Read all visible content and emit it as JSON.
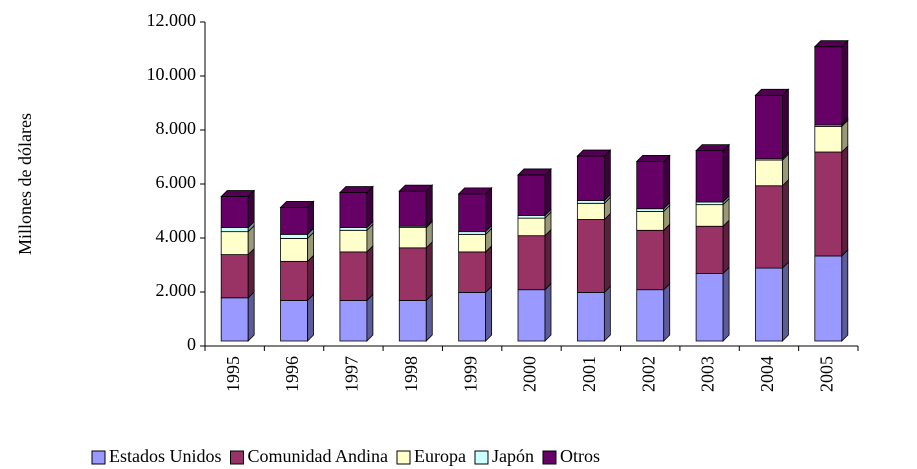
{
  "chart_data": {
    "type": "bar",
    "stacked": true,
    "y_label": "Millones de dólares",
    "categories": [
      "1995",
      "1996",
      "1997",
      "1998",
      "1999",
      "2000",
      "2001",
      "2002",
      "2003",
      "2004",
      "2005"
    ],
    "series": [
      {
        "name": "Estados Unidos",
        "color": "#9999ff",
        "values": [
          1600,
          1500,
          1500,
          1500,
          1800,
          1900,
          1800,
          1900,
          2500,
          2700,
          3150
        ]
      },
      {
        "name": "Comunidad Andina",
        "color": "#993366",
        "values": [
          1600,
          1450,
          1800,
          1950,
          1500,
          2000,
          2700,
          2200,
          1750,
          3050,
          3850
        ]
      },
      {
        "name": "Europa",
        "color": "#ffffcc",
        "values": [
          850,
          850,
          800,
          750,
          650,
          650,
          600,
          700,
          800,
          950,
          950
        ]
      },
      {
        "name": "Japón",
        "color": "#ccffff",
        "values": [
          150,
          150,
          100,
          50,
          100,
          100,
          100,
          100,
          100,
          50,
          50
        ]
      },
      {
        "name": "Otros",
        "color": "#660066",
        "values": [
          1150,
          1000,
          1300,
          1300,
          1400,
          1500,
          1650,
          1750,
          1900,
          2350,
          2900
        ]
      }
    ],
    "ylim": [
      0,
      12000
    ],
    "yticks": [
      0,
      {
        "value": 2000,
        "label": "2.000"
      },
      {
        "value": 4000,
        "label": "4.000"
      },
      {
        "value": 6000,
        "label": "6.000"
      },
      {
        "value": 8000,
        "label": "8.000"
      },
      {
        "value": 10000,
        "label": "10.000"
      },
      {
        "value": 12000,
        "label": "12.000"
      }
    ],
    "grid": false,
    "legend": "bottom"
  }
}
